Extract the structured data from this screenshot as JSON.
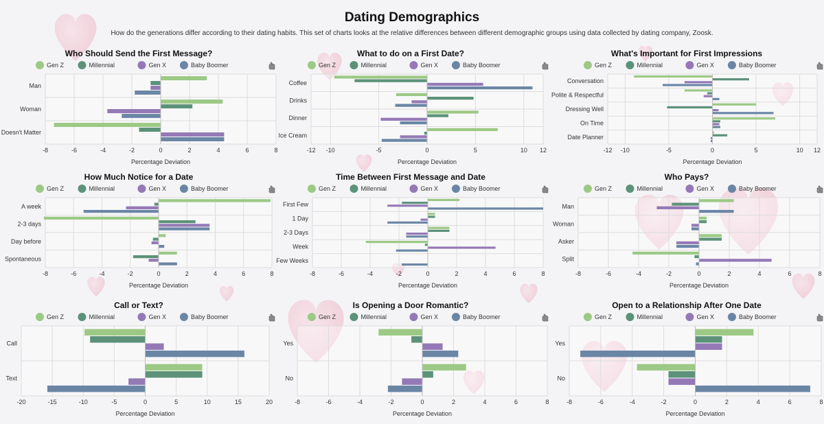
{
  "page": {
    "title": "Dating Demographics",
    "subtitle": "How do the generations differ according to their dating habits. This set of charts looks at the relative differences between different demographic groups using data collected by dating company, Zoosk."
  },
  "series_colors": {
    "Gen Z": "#9cc985",
    "Millennial": "#5c9279",
    "Gen X": "#9479b6",
    "Baby Boomer": "#6b86a5"
  },
  "menu_icon": "hand-icon",
  "chart_data": [
    {
      "type": "bar",
      "orientation": "horizontal",
      "title": "Who Should Send the First Message?",
      "categories": [
        "Man",
        "Woman",
        "Doesn't Matter"
      ],
      "series": [
        {
          "name": "Gen Z",
          "values": [
            3.2,
            4.3,
            -7.4
          ]
        },
        {
          "name": "Millennial",
          "values": [
            -0.7,
            2.2,
            -1.5
          ]
        },
        {
          "name": "Gen X",
          "values": [
            -0.7,
            -3.7,
            4.4
          ]
        },
        {
          "name": "Baby Boomer",
          "values": [
            -1.8,
            -2.7,
            4.4
          ]
        }
      ],
      "xlim": [
        -8,
        8
      ],
      "xticks": [
        -8,
        -6,
        -4,
        -2,
        0,
        2,
        4,
        6,
        8
      ],
      "xlabel": "Percentage Deviation",
      "legend": "top"
    },
    {
      "type": "bar",
      "orientation": "horizontal",
      "title": "What to do on a First Date?",
      "categories": [
        "Coffee",
        "Drinks",
        "Dinner",
        "Ice Cream"
      ],
      "series": [
        {
          "name": "Gen Z",
          "values": [
            -9.6,
            -3.2,
            5.3,
            7.3
          ]
        },
        {
          "name": "Millennial",
          "values": [
            -7.5,
            4.8,
            2.2,
            -0.3
          ]
        },
        {
          "name": "Gen X",
          "values": [
            5.8,
            -1.6,
            -4.8,
            -2.8
          ]
        },
        {
          "name": "Baby Boomer",
          "values": [
            10.9,
            -3.3,
            -2.8,
            -4.7
          ]
        }
      ],
      "xlim": [
        -12,
        12
      ],
      "xticks": [
        -12,
        -10,
        -5,
        0,
        5,
        10,
        12
      ],
      "xlabel": "Percentage Deviation",
      "legend": "top"
    },
    {
      "type": "bar",
      "orientation": "horizontal",
      "title": "What's Important for First Impressions",
      "categories": [
        "Conversation",
        "Polite & Respectful",
        "Dressing Well",
        "On Time",
        "Date Planner"
      ],
      "series": [
        {
          "name": "Gen Z",
          "values": [
            -9.0,
            -3.2,
            5.0,
            7.2,
            0.2
          ]
        },
        {
          "name": "Millennial",
          "values": [
            4.2,
            -0.6,
            -5.2,
            0.9,
            1.7
          ]
        },
        {
          "name": "Gen X",
          "values": [
            -3.2,
            -1.0,
            0.7,
            0.8,
            -0.2
          ]
        },
        {
          "name": "Baby Boomer",
          "values": [
            -5.7,
            0.8,
            7.0,
            0.9,
            -0.2
          ]
        }
      ],
      "xlim": [
        -12,
        12
      ],
      "xticks": [
        -12,
        -10,
        -5,
        0,
        5,
        10,
        12
      ],
      "xlabel": "Percentage Deviation",
      "legend": "top"
    },
    {
      "type": "bar",
      "orientation": "horizontal",
      "title": "How Much Notice for a Date",
      "categories": [
        "A week",
        "2-3 days",
        "Day before",
        "Spontaneous"
      ],
      "series": [
        {
          "name": "Gen Z",
          "values": [
            7.9,
            -8.1,
            0.5,
            1.3
          ]
        },
        {
          "name": "Millennial",
          "values": [
            -0.3,
            2.6,
            -0.4,
            -1.8
          ]
        },
        {
          "name": "Gen X",
          "values": [
            -2.3,
            3.6,
            -0.5,
            -0.7
          ]
        },
        {
          "name": "Baby Boomer",
          "values": [
            -5.3,
            3.6,
            0.4,
            1.3
          ]
        }
      ],
      "xlim": [
        -8,
        8
      ],
      "xticks": [
        -8,
        -6,
        -4,
        -2,
        0,
        2,
        4,
        6,
        8
      ],
      "xlabel": "Percentage Deviation",
      "legend": "top"
    },
    {
      "type": "bar",
      "orientation": "horizontal",
      "title": "Time Between First Message and Date",
      "categories": [
        "First Few",
        "1 Day",
        "2-3 Days",
        "Week",
        "Few Weeks"
      ],
      "series": [
        {
          "name": "Gen Z",
          "values": [
            2.2,
            0.5,
            1.5,
            -4.3,
            0.0
          ]
        },
        {
          "name": "Millennial",
          "values": [
            -1.8,
            0.5,
            1.5,
            -0.2,
            0.0
          ]
        },
        {
          "name": "Gen X",
          "values": [
            -2.8,
            -0.5,
            -1.5,
            4.7,
            0.0
          ]
        },
        {
          "name": "Baby Boomer",
          "values": [
            8.0,
            -2.8,
            -1.5,
            -2.2,
            -1.8
          ]
        }
      ],
      "xlim": [
        -8,
        8
      ],
      "xticks": [
        -8,
        -6,
        -4,
        -2,
        0,
        2,
        4,
        6,
        8
      ],
      "xlabel": "Percentage Deviation",
      "legend": "top"
    },
    {
      "type": "bar",
      "orientation": "horizontal",
      "title": "Who Pays?",
      "categories": [
        "Man",
        "Woman",
        "Asker",
        "Split"
      ],
      "series": [
        {
          "name": "Gen Z",
          "values": [
            2.3,
            0.5,
            1.5,
            -4.4
          ]
        },
        {
          "name": "Millennial",
          "values": [
            -1.8,
            0.5,
            1.5,
            -0.3
          ]
        },
        {
          "name": "Gen X",
          "values": [
            -2.8,
            -0.5,
            -1.5,
            4.8
          ]
        },
        {
          "name": "Baby Boomer",
          "values": [
            2.3,
            -0.5,
            -1.5,
            -0.2
          ]
        }
      ],
      "xlim": [
        -8,
        8
      ],
      "xticks": [
        -8,
        -6,
        -4,
        -2,
        0,
        2,
        4,
        6,
        8
      ],
      "xlabel": "Percentage Deviation",
      "legend": "top"
    },
    {
      "type": "bar",
      "orientation": "horizontal",
      "title": "Call or Text?",
      "categories": [
        "Call",
        "Text"
      ],
      "series": [
        {
          "name": "Gen Z",
          "values": [
            -9.8,
            9.2
          ]
        },
        {
          "name": "Millennial",
          "values": [
            -8.9,
            9.2
          ]
        },
        {
          "name": "Gen X",
          "values": [
            3.0,
            -2.7
          ]
        },
        {
          "name": "Baby Boomer",
          "values": [
            16.0,
            -15.8
          ]
        }
      ],
      "xlim": [
        -20,
        20
      ],
      "xticks": [
        -20,
        -15,
        -10,
        -5,
        0,
        5,
        10,
        15,
        20
      ],
      "xlabel": "Percentage Deviation",
      "legend": "top"
    },
    {
      "type": "bar",
      "orientation": "horizontal",
      "title": "Is Opening a Door Romantic?",
      "categories": [
        "Yes",
        "No"
      ],
      "series": [
        {
          "name": "Gen Z",
          "values": [
            -2.8,
            2.8
          ]
        },
        {
          "name": "Millennial",
          "values": [
            -0.7,
            0.7
          ]
        },
        {
          "name": "Gen X",
          "values": [
            1.3,
            -1.3
          ]
        },
        {
          "name": "Baby Boomer",
          "values": [
            2.3,
            -2.2
          ]
        }
      ],
      "xlim": [
        -8,
        8
      ],
      "xticks": [
        -8,
        -6,
        -4,
        -2,
        0,
        2,
        4,
        6,
        8
      ],
      "xlabel": "Percentage Deviation",
      "legend": "top"
    },
    {
      "type": "bar",
      "orientation": "horizontal",
      "title": "Open to a Relationship After One Date",
      "categories": [
        "Yes",
        "No"
      ],
      "series": [
        {
          "name": "Gen Z",
          "values": [
            3.7,
            -3.7
          ]
        },
        {
          "name": "Millennial",
          "values": [
            1.7,
            -1.7
          ]
        },
        {
          "name": "Gen X",
          "values": [
            1.7,
            -1.7
          ]
        },
        {
          "name": "Baby Boomer",
          "values": [
            -7.3,
            7.3
          ]
        }
      ],
      "xlim": [
        -8,
        8
      ],
      "xticks": [
        -8,
        -6,
        -4,
        -2,
        0,
        2,
        4,
        6,
        8
      ],
      "xlabel": "Percentage Deviation",
      "legend": "top"
    }
  ]
}
